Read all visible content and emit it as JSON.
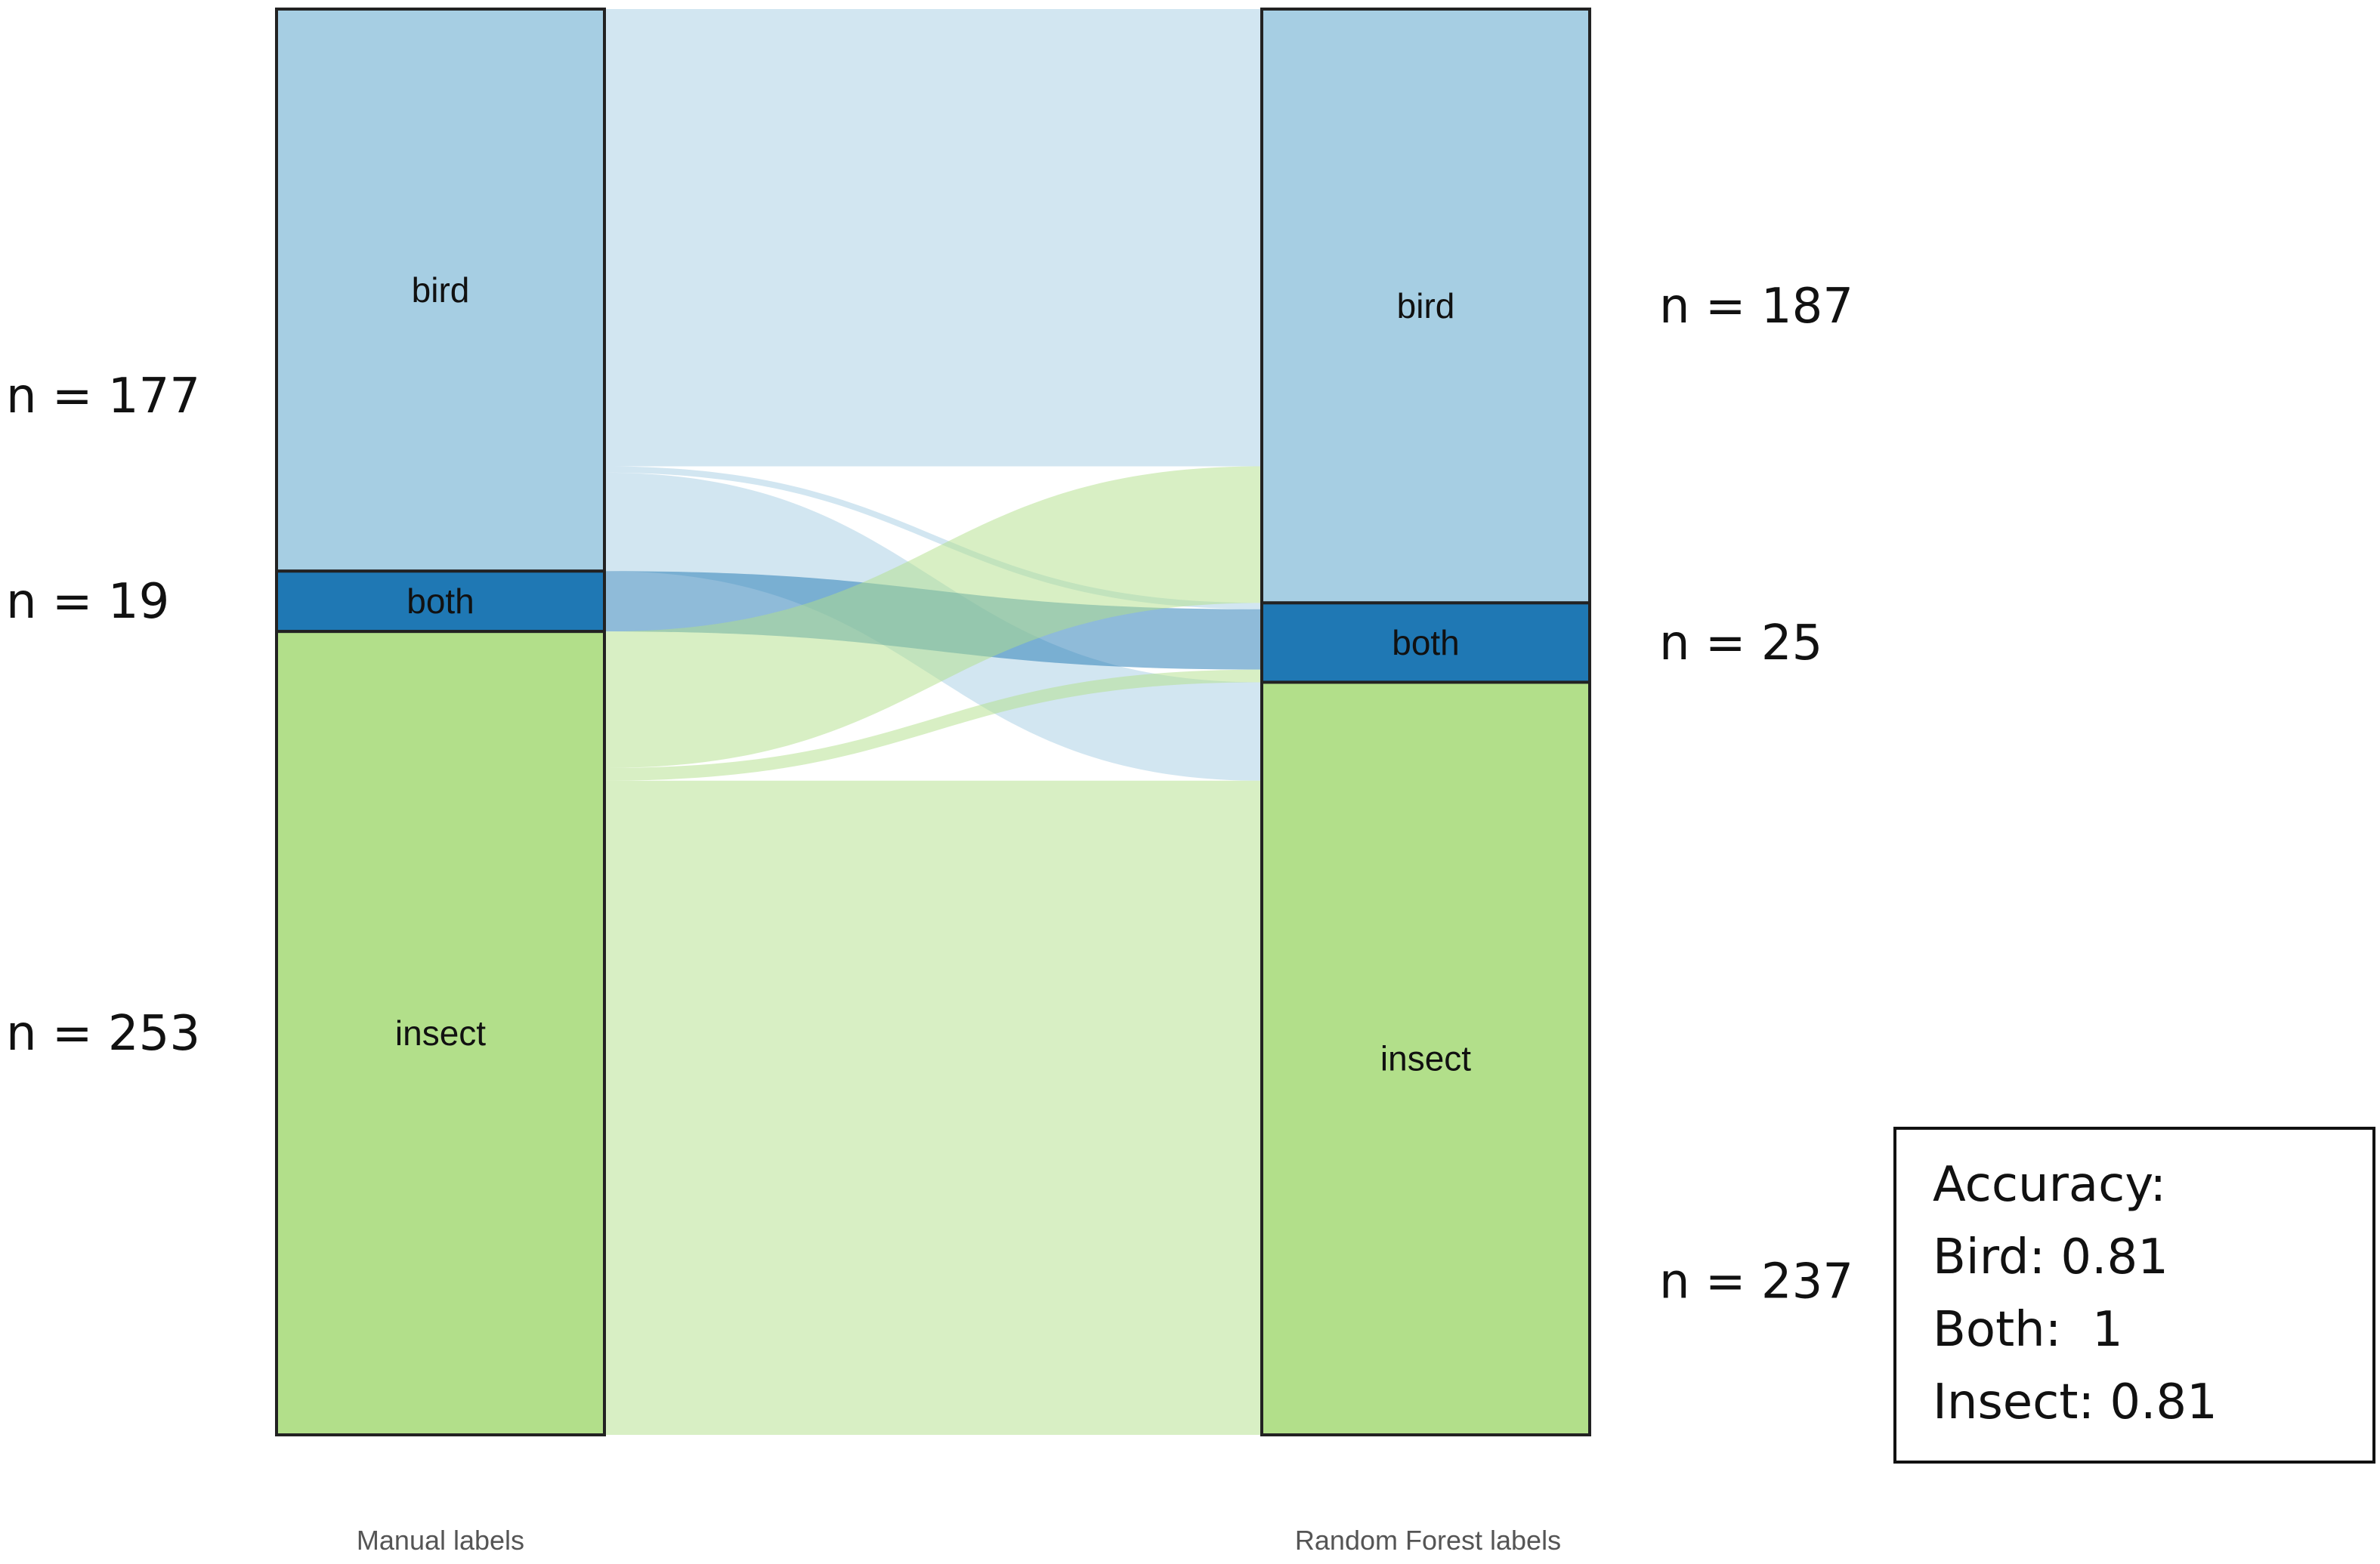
{
  "chart_data": {
    "type": "alluvial",
    "title": "",
    "axes": [
      "Manual labels",
      "Random Forest labels"
    ],
    "categories": [
      "bird",
      "both",
      "insect"
    ],
    "colors": {
      "bird": "#a6cee3",
      "both": "#1f78b4",
      "insect": "#b2df8a"
    },
    "left_counts": [
      {
        "category": "bird",
        "label": "n = 177",
        "value": 177
      },
      {
        "category": "both",
        "label": "n = 19",
        "value": 19
      },
      {
        "category": "insect",
        "label": "n = 253",
        "value": 253
      }
    ],
    "right_counts": [
      {
        "category": "bird",
        "label": "n = 187",
        "value": 187
      },
      {
        "category": "both",
        "label": "n = 25",
        "value": 25
      },
      {
        "category": "insect",
        "label": "n = 237",
        "value": 237
      }
    ],
    "flows": [
      {
        "from": "bird",
        "to": "bird",
        "value": 144
      },
      {
        "from": "bird",
        "to": "both",
        "value": 2
      },
      {
        "from": "bird",
        "to": "insect",
        "value": 31
      },
      {
        "from": "both",
        "to": "both",
        "value": 19
      },
      {
        "from": "insect",
        "to": "bird",
        "value": 43
      },
      {
        "from": "insect",
        "to": "both",
        "value": 4
      },
      {
        "from": "insect",
        "to": "insect",
        "value": 206
      }
    ]
  },
  "accuracy_box": {
    "lines": [
      "Accuracy:",
      "Bird: 0.81",
      "Both:  1",
      "Insect: 0.81"
    ]
  }
}
